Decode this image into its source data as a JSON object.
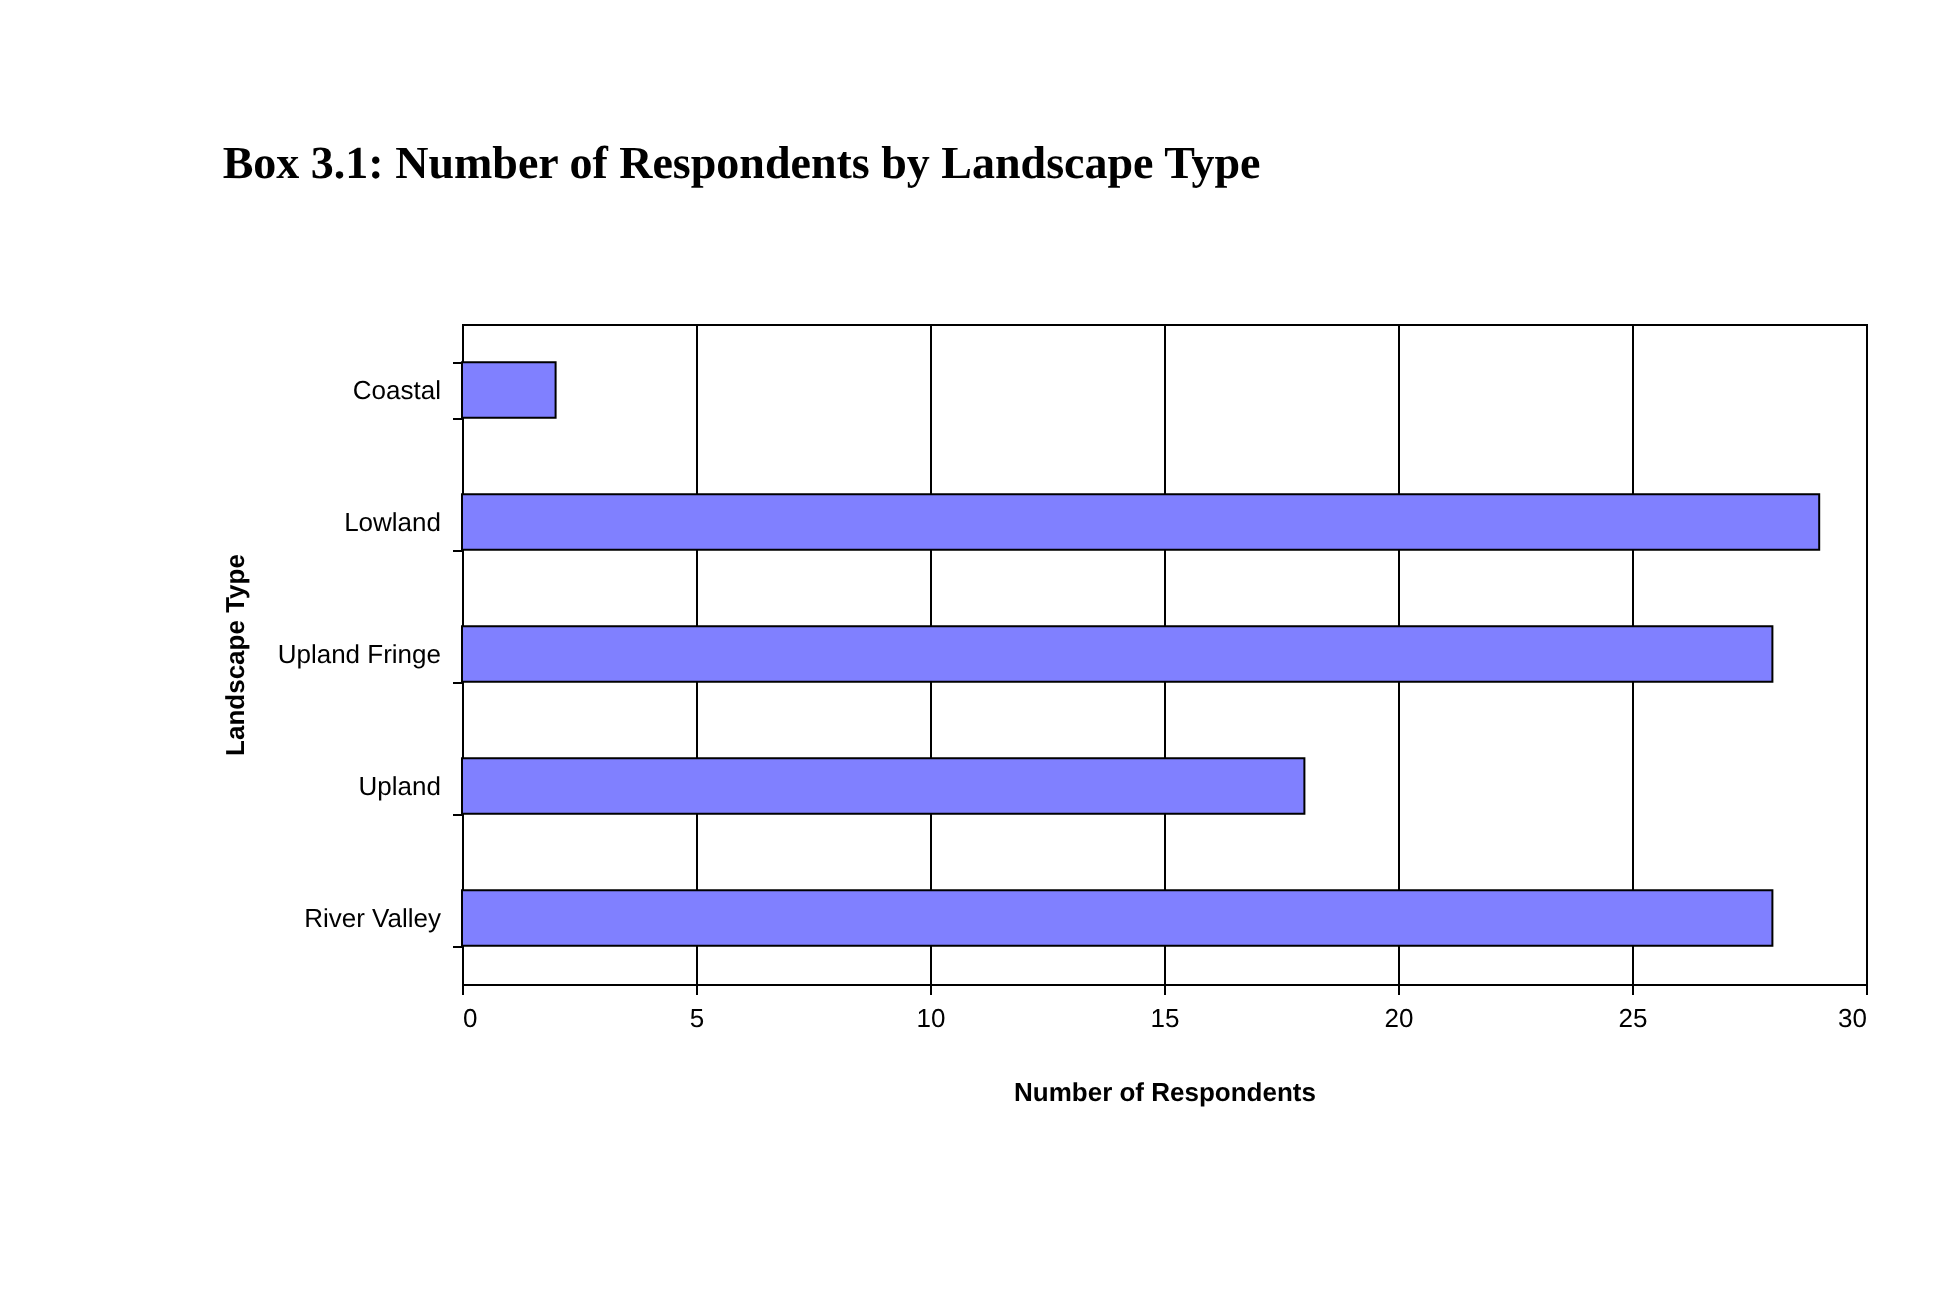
{
  "chart_data": {
    "type": "bar",
    "orientation": "horizontal",
    "title": "Box 3.1: Number of Respondents by Landscape Type",
    "xlabel": "Number of Respondents",
    "ylabel": "Landscape Type",
    "categories": [
      "Coastal",
      "Lowland",
      "Upland Fringe",
      "Upland",
      "River Valley"
    ],
    "values": [
      2,
      29,
      28,
      18,
      28
    ],
    "color": "#8080ff",
    "xlim": [
      0,
      30
    ],
    "xticks": [
      0,
      5,
      10,
      15,
      20,
      25,
      30
    ],
    "grid": "x"
  }
}
